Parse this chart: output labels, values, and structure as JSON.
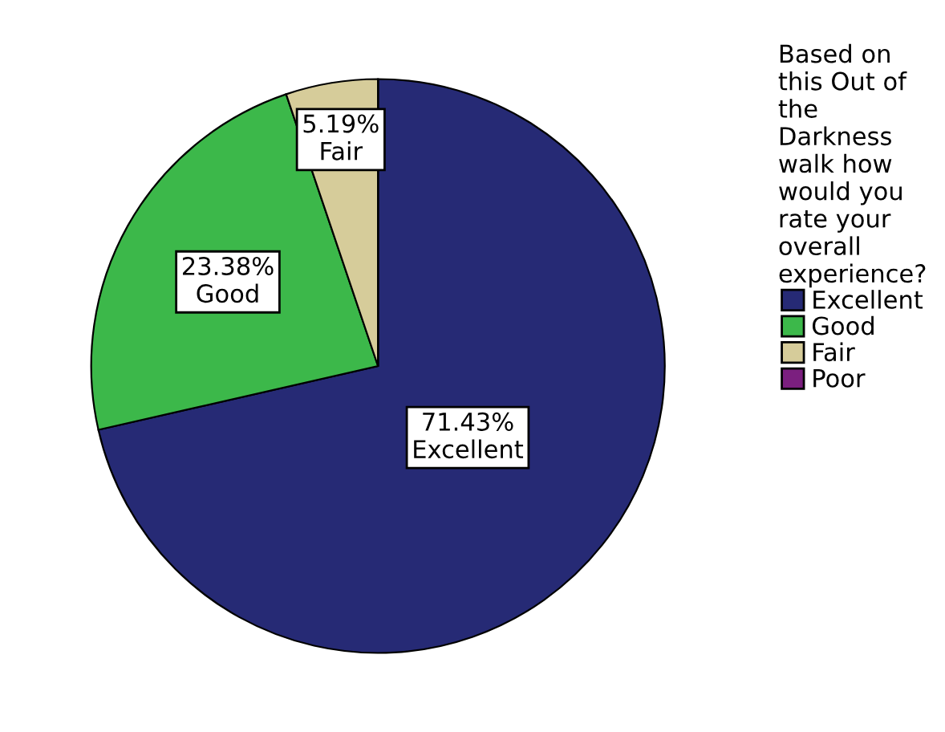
{
  "chart_data": {
    "type": "pie",
    "categories": [
      "Excellent",
      "Good",
      "Fair",
      "Poor"
    ],
    "values": [
      71.43,
      23.38,
      5.19,
      0
    ],
    "colors": [
      "#262a75",
      "#3cb84a",
      "#d6cc9a",
      "#7b1f7f"
    ],
    "value_labels": [
      "71.43%\nExcellent",
      "23.38%\nGood",
      "5.19%\nFair",
      null
    ],
    "legend_title": "Based on\nthis Out of\nthe\nDarkness\nwalk how\nwould you\nrate your\noverall\nexperience?",
    "legend": "right"
  }
}
